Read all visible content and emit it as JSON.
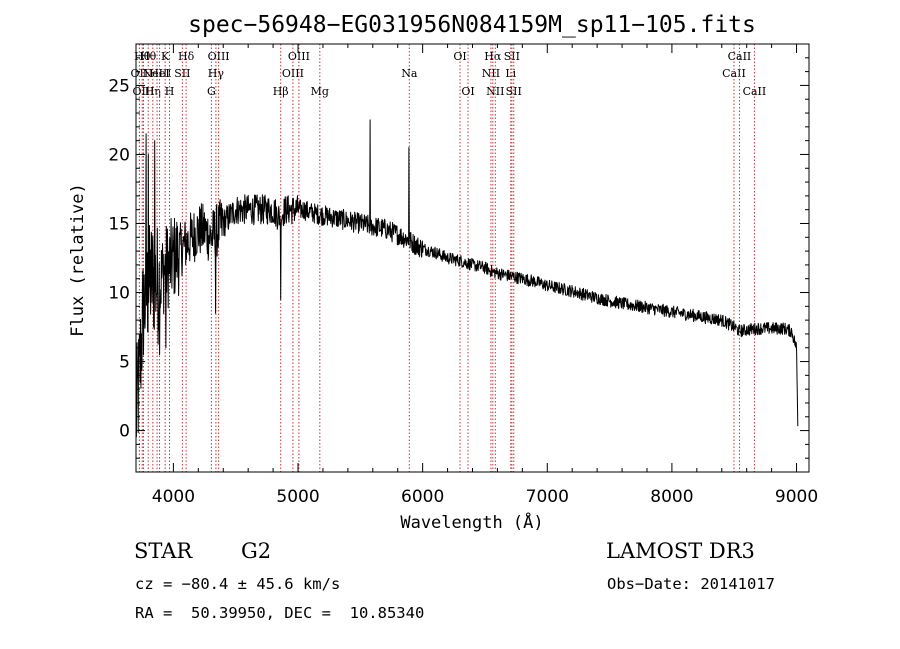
{
  "chart_data": {
    "type": "line",
    "title": "spec−56948−EG031956N084159M_sp11−105.fits",
    "xlabel": "Wavelength (Å)",
    "ylabel": "Flux (relative)",
    "xlim": [
      3700,
      9100
    ],
    "ylim": [
      -3,
      28
    ],
    "xticks": [
      4000,
      5000,
      6000,
      7000,
      8000,
      9000
    ],
    "yticks": [
      0,
      5,
      10,
      15,
      20,
      25
    ],
    "grid": false,
    "spectrum_anchors": {
      "x": [
        3700,
        3720,
        3740,
        3760,
        3790,
        3820,
        3850,
        3880,
        3900,
        3920,
        3950,
        3970,
        4000,
        4050,
        4100,
        4150,
        4200,
        4250,
        4300,
        4350,
        4400,
        4450,
        4500,
        4550,
        4600,
        4650,
        4700,
        4750,
        4800,
        4850,
        4900,
        4950,
        5000,
        5050,
        5100,
        5200,
        5300,
        5400,
        5500,
        5600,
        5700,
        5800,
        5890,
        5950,
        6000,
        6100,
        6200,
        6300,
        6400,
        6500,
        6560,
        6600,
        6700,
        6800,
        6900,
        7000,
        7200,
        7400,
        7600,
        7800,
        8000,
        8200,
        8400,
        8500,
        8540,
        8600,
        8700,
        8800,
        8900,
        8960,
        9000,
        9010
      ],
      "y": [
        1,
        3,
        6,
        9,
        10,
        11,
        11,
        10.5,
        11,
        11.5,
        12,
        12,
        12.5,
        13,
        13.5,
        14,
        14.5,
        14.5,
        14,
        14.5,
        15,
        15.5,
        16,
        16,
        16,
        16,
        16,
        16,
        16,
        15.5,
        16,
        16,
        16,
        16,
        15.8,
        15.6,
        15.4,
        15.2,
        15,
        14.8,
        14.6,
        14.2,
        13.8,
        13.4,
        13.2,
        12.9,
        12.5,
        12.3,
        12,
        11.8,
        11.5,
        11.4,
        11.2,
        11,
        10.8,
        10.5,
        10.1,
        9.6,
        9.2,
        8.9,
        8.6,
        8.3,
        8.0,
        7.5,
        7.2,
        7.3,
        7.4,
        7.4,
        7.4,
        7.2,
        6,
        0.5
      ]
    },
    "spikes": [
      {
        "x": 3780,
        "y": 21.5
      },
      {
        "x": 3800,
        "y": 20
      },
      {
        "x": 3850,
        "y": 21
      },
      {
        "x": 5577,
        "y": 22.5
      },
      {
        "x": 5890,
        "y": 20.5
      },
      {
        "x": 4340,
        "y": 8.5
      },
      {
        "x": 4861,
        "y": 9.5
      },
      {
        "x": 3940,
        "y": 6
      },
      {
        "x": 3890,
        "y": 5.5
      }
    ],
    "spectral_lines": [
      {
        "x": 3727,
        "label": "OII",
        "row": 1
      },
      {
        "x": 3750,
        "label": "Hθ",
        "row": 0
      },
      {
        "x": 3760,
        "label": "OIII",
        "row": 2
      },
      {
        "x": 3798,
        "label": "Hθ",
        "row": 0
      },
      {
        "x": 3835,
        "label": "Hη",
        "row": 2
      },
      {
        "x": 3869,
        "label": "NeIII",
        "row": 1
      },
      {
        "x": 3889,
        "label": "HeI",
        "row": 1
      },
      {
        "x": 3934,
        "label": "K",
        "row": 0
      },
      {
        "x": 3969,
        "label": "H",
        "row": 2
      },
      {
        "x": 4072,
        "label": "SII",
        "row": 1
      },
      {
        "x": 4102,
        "label": "Hδ",
        "row": 0
      },
      {
        "x": 4305,
        "label": "G",
        "row": 2
      },
      {
        "x": 4341,
        "label": "Hγ",
        "row": 1
      },
      {
        "x": 4363,
        "label": "OIII",
        "row": 0
      },
      {
        "x": 4861,
        "label": "Hβ",
        "row": 2
      },
      {
        "x": 4959,
        "label": "OIII",
        "row": 1
      },
      {
        "x": 5007,
        "label": "OIII",
        "row": 0
      },
      {
        "x": 5175,
        "label": "Mg",
        "row": 2
      },
      {
        "x": 5893,
        "label": "Na",
        "row": 1
      },
      {
        "x": 6300,
        "label": "OI",
        "row": 0
      },
      {
        "x": 6364,
        "label": "OI",
        "row": 2
      },
      {
        "x": 6548,
        "label": "NII",
        "row": 1
      },
      {
        "x": 6563,
        "label": "Hα",
        "row": 0
      },
      {
        "x": 6583,
        "label": "NII",
        "row": 2
      },
      {
        "x": 6707,
        "label": "Li",
        "row": 1
      },
      {
        "x": 6716,
        "label": "SII",
        "row": 0
      },
      {
        "x": 6731,
        "label": "SII",
        "row": 2
      },
      {
        "x": 8498,
        "label": "CaII",
        "row": 1
      },
      {
        "x": 8542,
        "label": "CaII",
        "row": 0
      },
      {
        "x": 8662,
        "label": "CaII",
        "row": 2
      }
    ]
  },
  "info": {
    "class": "STAR",
    "subclass": "G2",
    "survey": "LAMOST DR3",
    "velocity": "cz = −80.4 ± 45.6 km/s",
    "obs_date": "Obs−Date: 20141017",
    "coords": "RA =  50.39950, DEC =  10.85340"
  }
}
